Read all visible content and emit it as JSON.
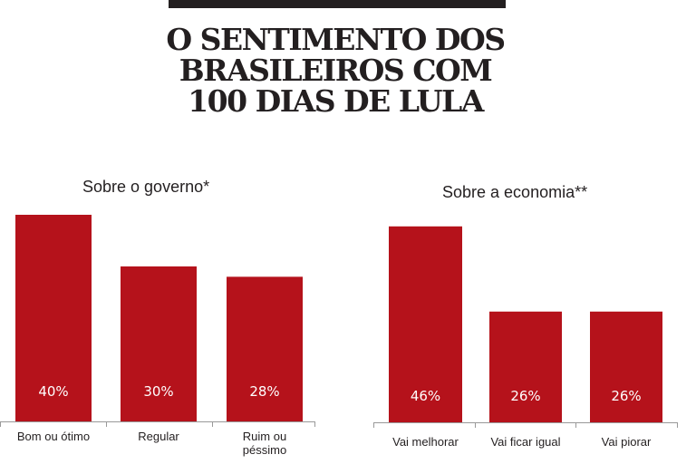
{
  "headline": {
    "line1": "O SENTIMENTO DOS",
    "line2": "BRASILEIROS COM",
    "line3": "100 DIAS DE LULA"
  },
  "colors": {
    "bar": "#b5121b",
    "text": "#231f20",
    "axis": "#999999"
  },
  "chart_data": [
    {
      "type": "bar",
      "title": "Sobre o governo*",
      "categories": [
        [
          "Bom ou ótimo"
        ],
        [
          "Regular"
        ],
        [
          "Ruim ou",
          "péssimo"
        ]
      ],
      "values": [
        40,
        30,
        28
      ],
      "value_labels": [
        "40%",
        "30%",
        "28%"
      ],
      "xlabel": "",
      "ylabel": ""
    },
    {
      "type": "bar",
      "title": "Sobre a economia**",
      "categories": [
        [
          "Vai melhorar"
        ],
        [
          "Vai ficar igual"
        ],
        [
          "Vai piorar"
        ]
      ],
      "values": [
        46,
        26,
        26
      ],
      "value_labels": [
        "46%",
        "26%",
        "26%"
      ],
      "xlabel": "",
      "ylabel": ""
    }
  ]
}
